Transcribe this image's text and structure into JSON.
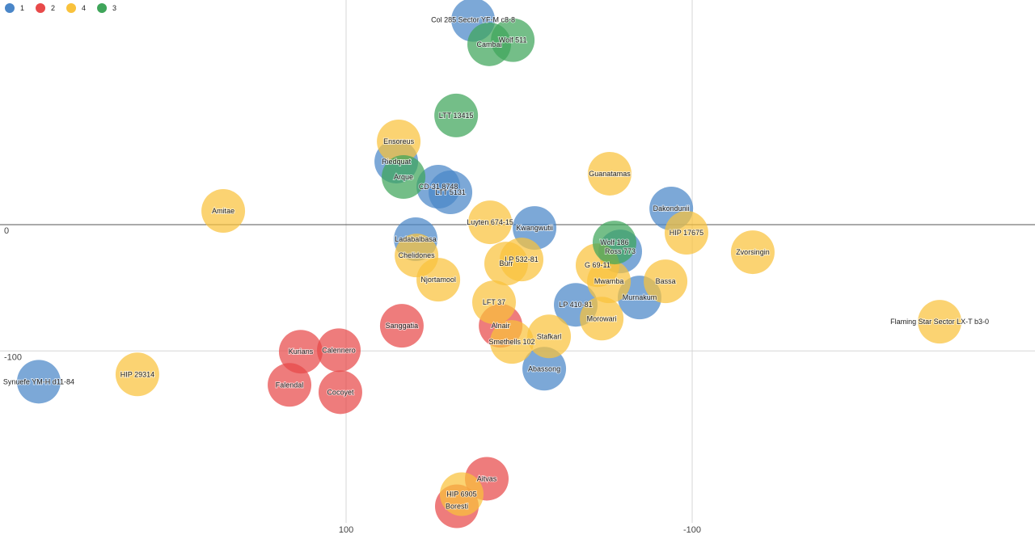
{
  "chart_data": {
    "type": "scatter",
    "xlim": [
      300,
      -298.1
    ],
    "ylim": [
      -249,
      178
    ],
    "xticks": [
      100,
      -100
    ],
    "yticks": [
      0,
      -100
    ],
    "grid": true,
    "legend": "top-left",
    "series": [
      {
        "name": "1",
        "color": "#4a86c8",
        "labels": [
          "Col 285 Sector YF-M c8-8",
          "LTT 5131",
          "CD-31 8748",
          "Riedquat",
          "Dakondunii",
          "Kwangwutii",
          "Ladabalbasa",
          "Ross 773",
          "Murnakum",
          "LP 410-81",
          "Abassong",
          "Synuefe YM-H d11-84"
        ],
        "x": [
          26.6,
          39.7,
          46.7,
          71.0,
          -87.9,
          -8.9,
          59.8,
          -58.4,
          -69.6,
          -32.7,
          -14.5,
          277.6
        ],
        "values": [
          162.2,
          25.6,
          30.1,
          50.0,
          12.8,
          -2.6,
          -11.5,
          -21.2,
          -57.7,
          -63.5,
          -114.1,
          -124.4
        ]
      },
      {
        "name": "2",
        "color": "#e84a4a",
        "labels": [
          "Sanggatia",
          "Alnair",
          "Kurians",
          "Calennero",
          "Falendal",
          "Cocoyet",
          "Aitvas",
          "Boresti"
        ],
        "x": [
          67.8,
          10.7,
          126.2,
          104.2,
          132.7,
          103.3,
          18.7,
          36.0
        ],
        "values": [
          -80.1,
          -80.1,
          -100.6,
          -99.4,
          -126.9,
          -132.7,
          -201.3,
          -223.1
        ]
      },
      {
        "name": "4",
        "color": "#f9c23c",
        "labels": [
          "Ensoreus",
          "Amitae",
          "Guanatamas",
          "Luyten 674-15",
          "HIP 17675",
          "Zvorsingin",
          "Chelidones",
          "LP 532-81",
          "Burr",
          "G 69-11",
          "Njortamool",
          "Bassa",
          "Mwamba",
          "LFT 37",
          "Morowari",
          "Flaming Star Sector LX-T b3-0",
          "Stafkarl",
          "Smethells 102",
          "HIP 29314",
          "HIP 6905"
        ],
        "x": [
          69.6,
          171.0,
          -52.3,
          16.8,
          -96.7,
          -135.0,
          59.3,
          -1.4,
          7.5,
          -45.3,
          46.7,
          -84.6,
          -51.9,
          14.5,
          -47.7,
          -243.0,
          -17.3,
          4.2,
          220.6,
          33.2
        ],
        "values": [
          66.0,
          10.9,
          40.4,
          1.9,
          -6.4,
          -21.8,
          -24.4,
          -27.6,
          -30.8,
          -32.1,
          -43.6,
          -44.9,
          -44.9,
          -61.5,
          -74.4,
          -76.9,
          -88.5,
          -92.9,
          -118.6,
          -213.5
        ]
      },
      {
        "name": "3",
        "color": "#3fa55a",
        "labels": [
          "Cambai",
          "Wolf 511",
          "LTT 13415",
          "Arque",
          "Wolf 186"
        ],
        "x": [
          17.3,
          3.7,
          36.4,
          66.8,
          -55.1
        ],
        "values": [
          142.9,
          146.2,
          86.5,
          37.8,
          -14.1
        ]
      }
    ]
  }
}
